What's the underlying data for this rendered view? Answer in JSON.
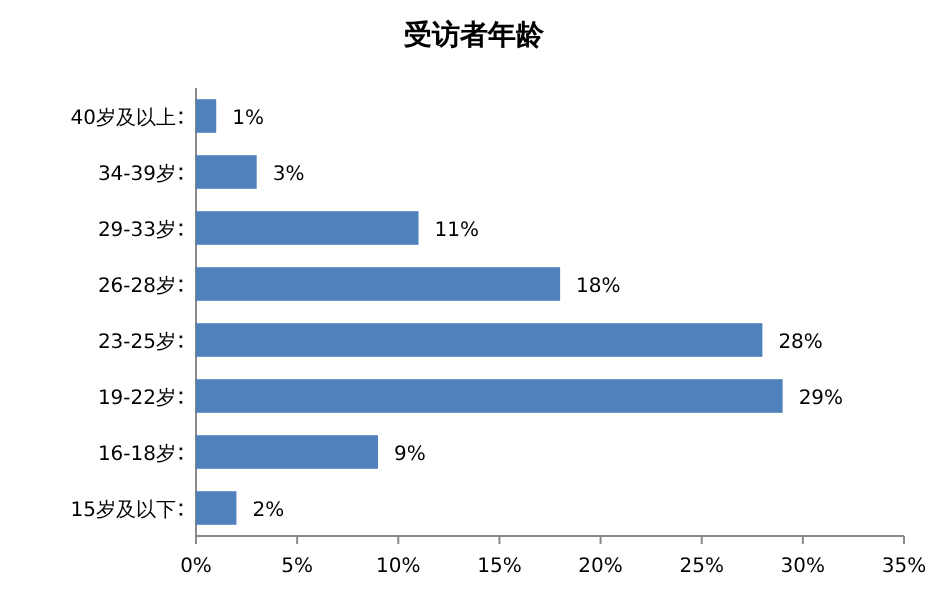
{
  "chart_data": {
    "type": "bar",
    "orientation": "horizontal",
    "title": "受访者年龄",
    "categories": [
      "40岁及以上",
      "34-39岁",
      "29-33岁",
      "26-28岁",
      "23-25岁",
      "19-22岁",
      "16-18岁",
      "15岁及以下"
    ],
    "values": [
      1,
      3,
      11,
      18,
      28,
      29,
      9,
      2
    ],
    "value_labels": [
      "1%",
      "3%",
      "11%",
      "18%",
      "28%",
      "29%",
      "9%",
      "2%"
    ],
    "color": "#4f81bd",
    "xlim": [
      0,
      35
    ],
    "xticks": [
      {
        "value": 0,
        "label": "0%"
      },
      {
        "value": 5,
        "label": "5%"
      },
      {
        "value": 10,
        "label": "10%"
      },
      {
        "value": 15,
        "label": "15%"
      },
      {
        "value": 20,
        "label": "20%"
      },
      {
        "value": 25,
        "label": "25%"
      },
      {
        "value": 30,
        "label": "30%"
      },
      {
        "value": 35,
        "label": "35%"
      }
    ],
    "grid": false
  }
}
